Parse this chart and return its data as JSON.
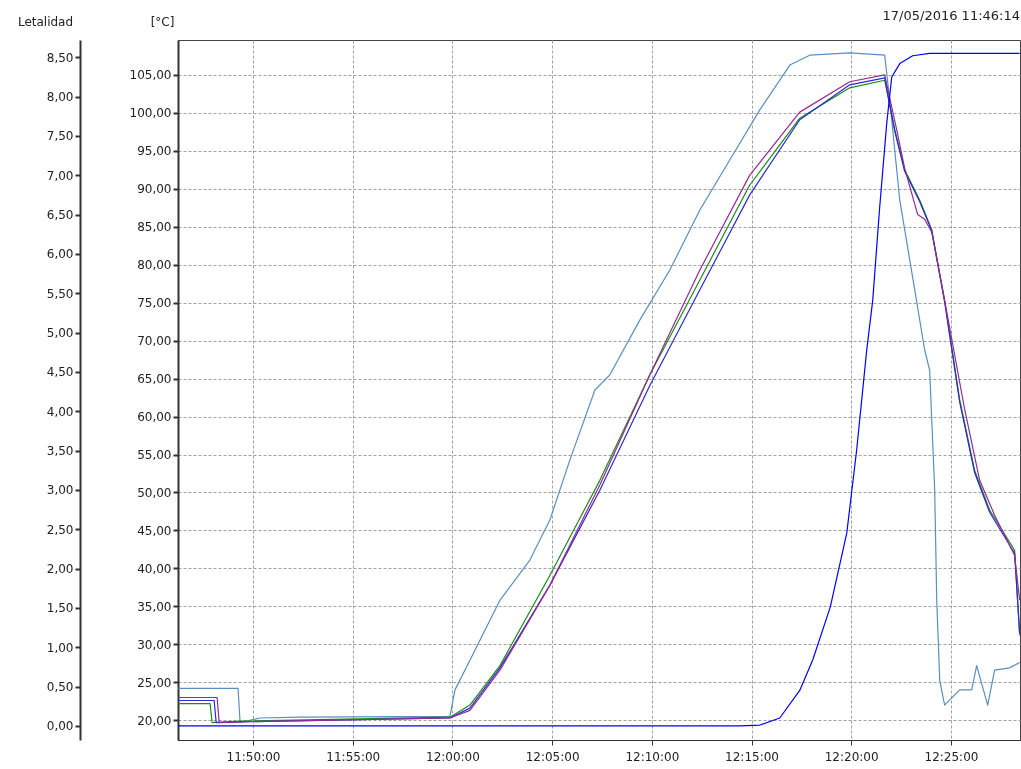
{
  "chart_data": {
    "type": "line",
    "title": "17/05/2016 11:46:14",
    "ylabel": "[°C]",
    "y2label": "Letalidad",
    "grid": true,
    "xlim": [
      11.7706,
      12.4744
    ],
    "xticks": [
      {
        "value": 11.8333,
        "label": "11:50:00"
      },
      {
        "value": 11.9167,
        "label": "11:55:00"
      },
      {
        "value": 12.0,
        "label": "12:00:00"
      },
      {
        "value": 12.0833,
        "label": "12:05:00"
      },
      {
        "value": 12.1667,
        "label": "12:10:00"
      },
      {
        "value": 12.25,
        "label": "12:15:00"
      },
      {
        "value": 12.3333,
        "label": "12:20:00"
      },
      {
        "value": 12.4167,
        "label": "12:25:00"
      }
    ],
    "ylim": [
      17.4,
      109.6
    ],
    "yticks": [
      {
        "value": 20,
        "label": "20,00"
      },
      {
        "value": 25,
        "label": "25,00"
      },
      {
        "value": 30,
        "label": "30,00"
      },
      {
        "value": 35,
        "label": "35,00"
      },
      {
        "value": 40,
        "label": "40,00"
      },
      {
        "value": 45,
        "label": "45,00"
      },
      {
        "value": 50,
        "label": "50,00"
      },
      {
        "value": 55,
        "label": "55,00"
      },
      {
        "value": 60,
        "label": "60,00"
      },
      {
        "value": 65,
        "label": "65,00"
      },
      {
        "value": 70,
        "label": "70,00"
      },
      {
        "value": 75,
        "label": "75,00"
      },
      {
        "value": 80,
        "label": "80,00"
      },
      {
        "value": 85,
        "label": "85,00"
      },
      {
        "value": 90,
        "label": "90,00"
      },
      {
        "value": 95,
        "label": "95,00"
      },
      {
        "value": 100,
        "label": "100,00"
      },
      {
        "value": 105,
        "label": "105,00"
      }
    ],
    "y2lim": [
      -0.18,
      8.72
    ],
    "y2ticks": [
      {
        "value": 0,
        "label": "0,00"
      },
      {
        "value": 0.5,
        "label": "0,50"
      },
      {
        "value": 1,
        "label": "1,00"
      },
      {
        "value": 1.5,
        "label": "1,50"
      },
      {
        "value": 2,
        "label": "2,00"
      },
      {
        "value": 2.5,
        "label": "2,50"
      },
      {
        "value": 3,
        "label": "3,00"
      },
      {
        "value": 3.5,
        "label": "3,50"
      },
      {
        "value": 4,
        "label": "4,00"
      },
      {
        "value": 4.5,
        "label": "4,50"
      },
      {
        "value": 5,
        "label": "5,00"
      },
      {
        "value": 5.5,
        "label": "5,50"
      },
      {
        "value": 6,
        "label": "6,00"
      },
      {
        "value": 6.5,
        "label": "6,50"
      },
      {
        "value": 7,
        "label": "7,00"
      },
      {
        "value": 7.5,
        "label": "7,50"
      },
      {
        "value": 8,
        "label": "8,00"
      },
      {
        "value": 8.5,
        "label": "8,50"
      }
    ],
    "series": [
      {
        "color": "#5a8fbf",
        "x": [
          11.7707,
          11.8208,
          11.8225,
          11.8392,
          11.8726,
          11.9979,
          12.0021,
          12.0146,
          12.0397,
          12.0647,
          12.0815,
          12.0982,
          12.1191,
          12.1316,
          12.1566,
          12.1817,
          12.2068,
          12.2318,
          12.2569,
          12.282,
          12.2987,
          12.3321,
          12.3613,
          12.3655,
          12.3739,
          12.3864,
          12.3947,
          12.3989,
          12.4031,
          12.4048,
          12.4073,
          12.4114,
          12.424,
          12.434,
          12.4382,
          12.4474,
          12.4532,
          12.4657,
          12.4741
        ],
        "values": [
          24.2,
          24.2,
          19.7,
          20.3,
          20.4,
          20.5,
          24.0,
          27.9,
          35.8,
          41.1,
          46.4,
          54.3,
          63.5,
          65.5,
          72.7,
          79.3,
          87.2,
          93.8,
          100.4,
          106.3,
          107.6,
          107.9,
          107.6,
          101.7,
          88.5,
          76.7,
          68.8,
          66.1,
          50.3,
          35.8,
          25.3,
          22.0,
          24.0,
          24.0,
          27.2,
          22.0,
          26.6,
          26.9,
          27.6
        ]
      },
      {
        "color": "#1a8c1a",
        "x": [
          11.7707,
          11.7974,
          11.7991,
          11.8225,
          11.9979,
          12.0146,
          12.0397,
          12.0815,
          12.1232,
          12.165,
          12.2068,
          12.2485,
          12.2903,
          12.3321,
          12.3613,
          12.3697,
          12.378,
          12.3906,
          12.4006,
          12.4114,
          12.424,
          12.4365,
          12.449,
          12.4699,
          12.4741
        ],
        "values": [
          22.2,
          22.2,
          19.7,
          19.9,
          20.4,
          22.0,
          27.2,
          39.1,
          51.6,
          65.5,
          78.0,
          90.5,
          99.3,
          103.3,
          104.3,
          97.8,
          92.5,
          88.5,
          84.6,
          75.3,
          62.2,
          52.9,
          47.7,
          42.4,
          31.2
        ]
      },
      {
        "color": "#2a2ad0",
        "x": [
          11.7707,
          11.8008,
          11.8025,
          11.8225,
          11.9979,
          12.0146,
          12.0397,
          12.0815,
          12.1232,
          12.165,
          12.2068,
          12.2485,
          12.2903,
          12.3321,
          12.3613,
          12.3697,
          12.378,
          12.3906,
          12.4006,
          12.4114,
          12.424,
          12.4365,
          12.449,
          12.4699,
          12.4741
        ],
        "values": [
          22.6,
          22.6,
          19.7,
          19.8,
          20.3,
          21.6,
          26.9,
          37.8,
          50.3,
          64.1,
          76.7,
          89.2,
          99.1,
          103.7,
          104.6,
          97.6,
          92.3,
          88.3,
          84.5,
          75.1,
          61.9,
          52.6,
          47.4,
          42.0,
          31.5
        ]
      },
      {
        "color": "#952a95",
        "x": [
          11.7707,
          11.8033,
          11.805,
          11.8225,
          11.9979,
          12.0146,
          12.0397,
          12.0815,
          12.1232,
          12.165,
          12.2068,
          12.2485,
          12.2903,
          12.3321,
          12.3613,
          12.3713,
          12.378,
          12.3889,
          12.3947,
          12.4006,
          12.4114,
          12.4282,
          12.4407,
          12.4532,
          12.4699,
          12.4741
        ],
        "values": [
          23.0,
          23.0,
          19.7,
          19.8,
          20.3,
          21.3,
          26.6,
          37.8,
          51.0,
          65.5,
          79.3,
          91.8,
          100.1,
          104.1,
          105.0,
          97.8,
          92.7,
          86.6,
          86.0,
          84.3,
          75.3,
          60.9,
          51.6,
          47.0,
          41.7,
          35.8
        ]
      },
      {
        "color": "#0000ff",
        "axis": "y2",
        "x": [
          11.7707,
          12.2402,
          12.2569,
          12.2736,
          12.2903,
          12.3012,
          12.3158,
          12.3296,
          12.3379,
          12.3463,
          12.3513,
          12.3571,
          12.363,
          12.3672,
          12.3739,
          12.3847,
          12.3989,
          12.4741
        ],
        "values": [
          0.0,
          0.0,
          0.01,
          0.1,
          0.45,
          0.84,
          1.51,
          2.45,
          3.51,
          4.78,
          5.41,
          6.59,
          7.66,
          8.25,
          8.42,
          8.52,
          8.55,
          8.55
        ]
      }
    ]
  }
}
